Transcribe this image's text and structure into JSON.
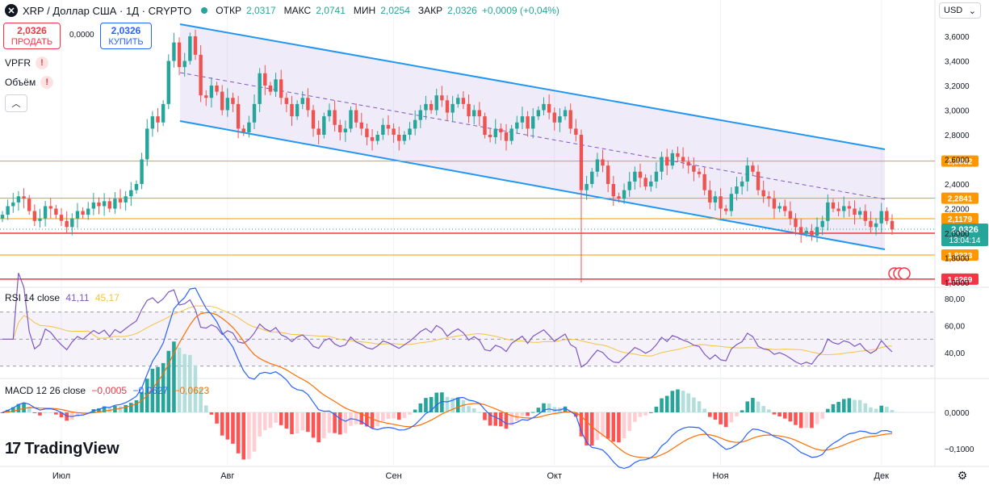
{
  "header": {
    "symbol": "XRP / Доллар США · 1Д · CRYPTO",
    "open_label": "ОТКР",
    "open": "2,0317",
    "high_label": "МАКС",
    "high": "2,0741",
    "low_label": "МИН",
    "low": "2,0254",
    "close_label": "ЗАКР",
    "close": "2,0326",
    "change": "+0,0009 (+0,04%)"
  },
  "trade": {
    "sell_price": "2,0326",
    "sell_label": "ПРОДАТЬ",
    "spread": "0,0000",
    "buy_price": "2,0326",
    "buy_label": "КУПИТЬ"
  },
  "indicators": {
    "vpfr": "VPFR",
    "volume": "Объём"
  },
  "currency": "USD",
  "logo": "TradingView",
  "colors": {
    "up": "#26a69a",
    "down": "#ef5350",
    "channel": "#2196f3",
    "orange": "#ff9800",
    "red": "#f23645",
    "rsi": "#7e57c2",
    "rsi_ma": "#f5c342",
    "macd": "#2962ff",
    "signal": "#ff6d00"
  },
  "chart_data": [
    {
      "type": "candlestick",
      "title": "XRP / Доллар США · 1Д · CRYPTO",
      "ylim": [
        1.6,
        3.75
      ],
      "y_ticks": [
        "3,6000",
        "3,4000",
        "3,2000",
        "3,0000",
        "2,8000",
        "2,6000",
        "2,4000",
        "2,2000",
        "2,0000",
        "1,8000",
        "1,6000"
      ],
      "x_labels": [
        "Июл",
        "Авг",
        "Сен",
        "Окт",
        "Ноя",
        "Дек"
      ],
      "x_label_index": [
        11,
        42,
        73,
        103,
        134,
        164
      ],
      "last_price": "2,0326",
      "countdown": "13:04:14",
      "horizontal_levels": [
        {
          "label": "2,5862",
          "value": 2.5862,
          "color": "#ff9800"
        },
        {
          "label": "2,2841",
          "value": 2.2841,
          "color": "#ff9800"
        },
        {
          "label": "2,1179",
          "value": 2.1179,
          "color": "#ff9800"
        },
        {
          "label": "2,0000",
          "value": 2.0,
          "color": "#f23645"
        },
        {
          "label": "1,8233",
          "value": 1.8233,
          "color": "#ff9800"
        },
        {
          "label": "1,6269",
          "value": 1.6269,
          "color": "#f23645"
        }
      ],
      "closes": [
        2.15,
        2.22,
        2.25,
        2.3,
        2.28,
        2.18,
        2.1,
        2.12,
        2.22,
        2.2,
        2.15,
        2.1,
        2.05,
        2.12,
        2.18,
        2.15,
        2.2,
        2.25,
        2.22,
        2.26,
        2.2,
        2.28,
        2.25,
        2.3,
        2.35,
        2.4,
        2.6,
        2.85,
        2.95,
        2.9,
        3.05,
        3.4,
        3.55,
        3.35,
        3.4,
        3.6,
        3.45,
        3.12,
        3.1,
        3.2,
        3.15,
        3.0,
        3.1,
        3.05,
        2.85,
        2.82,
        2.9,
        3.05,
        3.3,
        3.2,
        3.15,
        3.25,
        3.1,
        3.05,
        2.95,
        3.05,
        3.1,
        3.0,
        2.85,
        2.8,
        2.95,
        3.0,
        2.88,
        2.82,
        2.85,
        3.0,
        2.9,
        2.85,
        2.78,
        2.75,
        2.8,
        2.88,
        2.85,
        2.8,
        2.75,
        2.8,
        2.85,
        2.92,
        3.0,
        3.05,
        3.0,
        3.12,
        3.08,
        2.98,
        3.05,
        3.1,
        3.05,
        2.95,
        3.0,
        2.95,
        2.8,
        2.78,
        2.85,
        2.82,
        2.75,
        2.85,
        2.9,
        2.95,
        2.85,
        2.95,
        3.0,
        3.05,
        2.98,
        2.9,
        2.95,
        3.0,
        2.85,
        2.8,
        2.35,
        2.4,
        2.5,
        2.6,
        2.55,
        2.4,
        2.3,
        2.28,
        2.35,
        2.42,
        2.5,
        2.45,
        2.38,
        2.42,
        2.5,
        2.62,
        2.55,
        2.65,
        2.62,
        2.58,
        2.55,
        2.5,
        2.48,
        2.35,
        2.25,
        2.3,
        2.2,
        2.18,
        2.32,
        2.38,
        2.42,
        2.55,
        2.5,
        2.35,
        2.3,
        2.28,
        2.2,
        2.22,
        2.18,
        2.12,
        2.05,
        2.0,
        2.02,
        1.98,
        2.05,
        2.1,
        2.25,
        2.2,
        2.18,
        2.22,
        2.2,
        2.15,
        2.18,
        2.1,
        2.05,
        2.08,
        2.18,
        2.1,
        2.03
      ],
      "rsi": {
        "name": "RSI 14 close",
        "value": "41,11",
        "ma": "45,17",
        "levels": [
          70,
          50,
          30
        ],
        "y_ticks": [
          "80,00",
          "60,00",
          "40,00"
        ]
      },
      "macd": {
        "name": "MACD 12 26 close",
        "hist": "−0,0005",
        "macd": "−0,0627",
        "signal": "−0,0623",
        "y_ticks": [
          "0,0000",
          "−0,1000"
        ]
      }
    }
  ]
}
